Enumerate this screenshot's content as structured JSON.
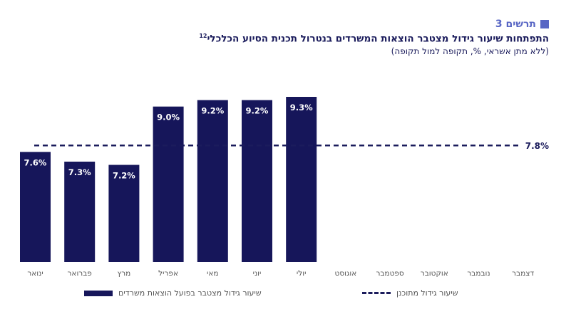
{
  "header": {
    "figure_label": "תרשים 3",
    "title": "התפתחות שיעור גידול מצטבר הוצאות המשרדים בנטרול תכנית הסיוע הכלכלי",
    "title_sup": "12",
    "subtitle": "(ללא מתן אשראי, %, תקופה למול תקופה)"
  },
  "colors": {
    "bar": "#16165a",
    "accent": "#5866c4",
    "text": "#1b1c5c"
  },
  "chart_data": {
    "type": "bar",
    "categories": [
      "ינואר",
      "פברואר",
      "מרץ",
      "אפריל",
      "מאי",
      "יוני",
      "יולי",
      "אוגוסט",
      "ספטמבר",
      "אוקטובר",
      "נובמבר",
      "דצמבר"
    ],
    "series": [
      {
        "name": "שיעור גידול מצטבר בפועל הוצאות משרדים",
        "values": [
          7.6,
          7.3,
          7.2,
          9.0,
          9.2,
          9.2,
          9.3,
          null,
          null,
          null,
          null,
          null
        ]
      }
    ],
    "data_labels": [
      "7.6%",
      "7.3%",
      "7.2%",
      "9.0%",
      "9.2%",
      "9.2%",
      "9.3%"
    ],
    "reference_line": {
      "name": "שיעור גידול מתוכנן",
      "value": 7.8,
      "label": "7.8%"
    },
    "ylim": [
      4.2,
      9.3
    ],
    "grid": false,
    "legend_position": "bottom"
  },
  "legend": {
    "actual": "שיעור גידול מצטבר בפועל הוצאות משרדים",
    "planned": "שיעור גידול מתוכנן"
  }
}
